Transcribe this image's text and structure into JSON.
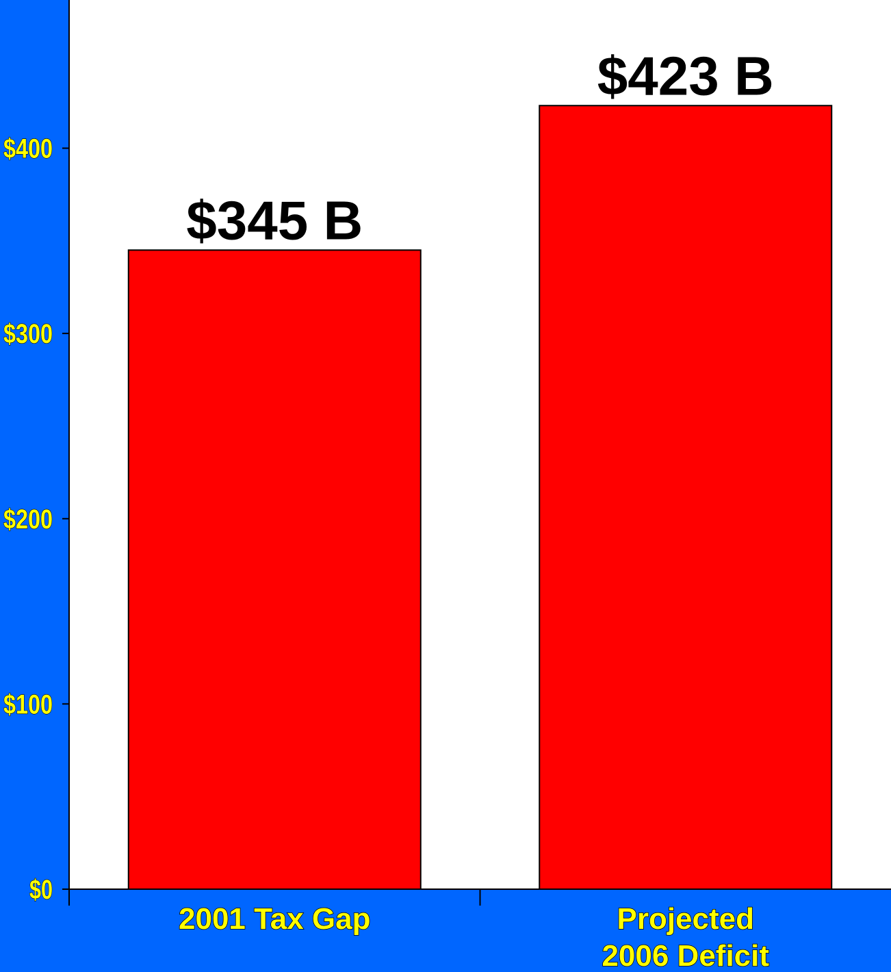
{
  "colors": {
    "background": "#0066ff",
    "plot_area": "#ffffff",
    "bar_fill": "#ff0000",
    "tick_label": "#ffff00",
    "data_label": "#000000"
  },
  "chart_data": {
    "type": "bar",
    "categories": [
      [
        "2001 Tax Gap"
      ],
      [
        "Projected",
        "2006 Deficit"
      ]
    ],
    "values": [
      345,
      423
    ],
    "data_labels": [
      "$345 B",
      "$423 B"
    ],
    "ylim": [
      0,
      480
    ],
    "yticks": [
      0,
      100,
      200,
      300,
      400
    ],
    "ytick_labels": [
      "$0",
      "$100",
      "$200",
      "$300",
      "$400"
    ],
    "title": "",
    "xlabel": "",
    "ylabel": "",
    "grid": false,
    "legend": false
  }
}
